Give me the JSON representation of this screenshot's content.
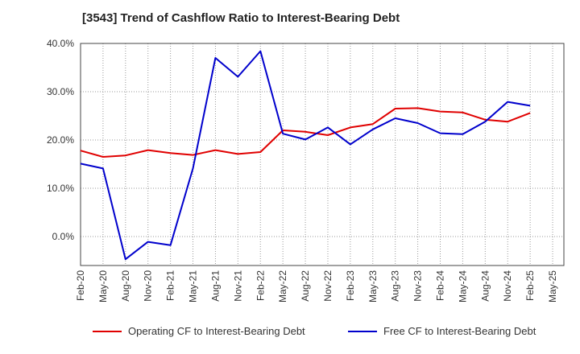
{
  "chart_data": {
    "type": "line",
    "title": "[3543]  Trend of Cashflow Ratio to Interest-Bearing Debt",
    "xlabel": "",
    "ylabel": "",
    "categories": [
      "Feb-20",
      "May-20",
      "Aug-20",
      "Nov-20",
      "Feb-21",
      "May-21",
      "Aug-21",
      "Nov-21",
      "Feb-22",
      "May-22",
      "Aug-22",
      "Nov-22",
      "Feb-23",
      "May-23",
      "Aug-23",
      "Nov-23",
      "Feb-24",
      "May-24",
      "Aug-24",
      "Nov-24",
      "Feb-25",
      "May-25"
    ],
    "ylim": [
      -6.0,
      40.0
    ],
    "yticks": [
      0.0,
      10.0,
      20.0,
      30.0,
      40.0
    ],
    "ytick_labels": [
      "0.0%",
      "10.0%",
      "20.0%",
      "30.0%",
      "40.0%"
    ],
    "grid": true,
    "legend_position": "bottom",
    "series": [
      {
        "name": "Operating CF to Interest-Bearing Debt",
        "color": "#e00000",
        "values": [
          17.8,
          16.5,
          16.8,
          17.9,
          17.3,
          16.9,
          17.9,
          17.1,
          17.5,
          22.0,
          21.7,
          21.0,
          22.6,
          23.3,
          26.5,
          26.6,
          25.9,
          25.7,
          24.2,
          23.8,
          25.6,
          null
        ]
      },
      {
        "name": "Free CF to Interest-Bearing Debt",
        "color": "#0000cc",
        "values": [
          15.1,
          14.1,
          -4.7,
          -1.1,
          -1.8,
          14.1,
          37.0,
          33.1,
          38.4,
          21.3,
          20.1,
          22.6,
          19.1,
          22.2,
          24.5,
          23.5,
          21.4,
          21.2,
          23.8,
          27.9,
          27.1,
          null
        ]
      }
    ]
  }
}
